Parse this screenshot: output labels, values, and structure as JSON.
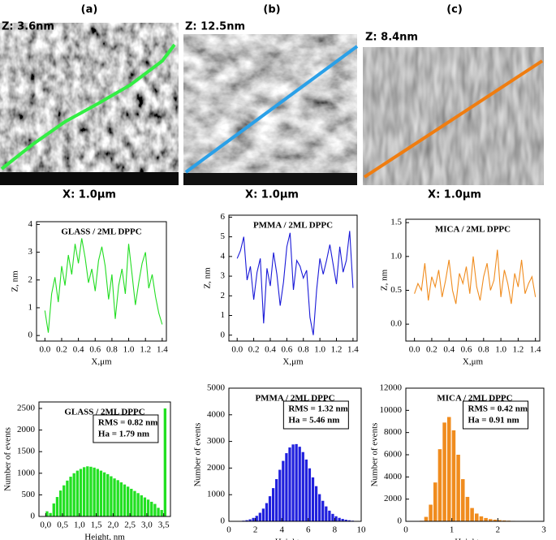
{
  "images": [
    {
      "panel": "(a)",
      "z_label": "Z: 3.6nm",
      "x_label": "X: 1.0μm"
    },
    {
      "panel": "(b)",
      "z_label": "Z: 12.5nm",
      "x_label": "X: 1.0μm"
    },
    {
      "panel": "(c)",
      "z_label": "Z: 8.4nm",
      "x_label": "X: 1.0μm"
    }
  ],
  "chart_data": [
    {
      "type": "line",
      "title": "GLASS / 2ML DPPC",
      "x_label": "X,μm",
      "y_label": "Z, nm",
      "color": "#22dd22",
      "x": [
        0,
        0.04,
        0.08,
        0.12,
        0.16,
        0.2,
        0.24,
        0.28,
        0.32,
        0.36,
        0.4,
        0.44,
        0.48,
        0.52,
        0.56,
        0.6,
        0.64,
        0.68,
        0.72,
        0.76,
        0.8,
        0.84,
        0.88,
        0.92,
        0.96,
        1.0,
        1.04,
        1.08,
        1.12,
        1.16,
        1.2,
        1.24,
        1.28,
        1.32,
        1.36,
        1.4
      ],
      "values": [
        0.9,
        0.1,
        1.5,
        2.1,
        1.2,
        2.5,
        1.8,
        2.9,
        2.2,
        3.3,
        2.6,
        3.5,
        2.8,
        1.9,
        2.4,
        1.6,
        2.7,
        3.2,
        2.5,
        1.3,
        2.2,
        0.6,
        1.8,
        2.4,
        1.5,
        3.3,
        2.2,
        1.1,
        1.9,
        2.6,
        3.0,
        1.7,
        2.2,
        1.4,
        0.8,
        0.4
      ],
      "xlim": [
        -0.1,
        1.45
      ],
      "xticks": [
        {
          "value": 0,
          "label": "0.0"
        },
        {
          "value": 0.2,
          "label": "0.2"
        },
        {
          "value": 0.4,
          "label": "0.4"
        },
        {
          "value": 0.6,
          "label": "0.6"
        },
        {
          "value": 0.8,
          "label": "0.8"
        },
        {
          "value": 1,
          "label": "1.0"
        },
        {
          "value": 1.2,
          "label": "1.2"
        },
        {
          "value": 1.4,
          "label": "1.4"
        }
      ],
      "ylim": [
        -0.2,
        4.1
      ],
      "yticks": [
        0,
        1,
        2,
        3,
        4
      ]
    },
    {
      "type": "line",
      "title": "PMMA / 2ML DPPC",
      "x_label": "X,μm",
      "y_label": "Z, nm",
      "color": "#1a1ad8",
      "x": [
        0,
        0.04,
        0.08,
        0.12,
        0.16,
        0.2,
        0.24,
        0.28,
        0.32,
        0.36,
        0.4,
        0.44,
        0.48,
        0.52,
        0.56,
        0.6,
        0.64,
        0.68,
        0.72,
        0.76,
        0.8,
        0.84,
        0.88,
        0.92,
        0.96,
        1.0,
        1.04,
        1.08,
        1.12,
        1.16,
        1.2,
        1.24,
        1.28,
        1.32,
        1.36,
        1.4
      ],
      "values": [
        3.9,
        4.3,
        5.0,
        2.8,
        3.5,
        1.8,
        3.2,
        3.9,
        0.6,
        3.4,
        2.5,
        4.2,
        3.1,
        1.5,
        2.7,
        4.5,
        5.2,
        2.3,
        3.8,
        3.5,
        2.9,
        3.3,
        0.9,
        0,
        2.3,
        3.9,
        3.1,
        3.8,
        4.6,
        3.6,
        2.6,
        4.5,
        3.2,
        3.8,
        5.3,
        2.4
      ],
      "xlim": [
        -0.1,
        1.45
      ],
      "xticks": [
        {
          "value": 0,
          "label": "0.0"
        },
        {
          "value": 0.2,
          "label": "0.2"
        },
        {
          "value": 0.4,
          "label": "0.4"
        },
        {
          "value": 0.6,
          "label": "0.6"
        },
        {
          "value": 0.8,
          "label": "0.8"
        },
        {
          "value": 1,
          "label": "1.0"
        },
        {
          "value": 1.2,
          "label": "1.2"
        },
        {
          "value": 1.4,
          "label": "1.4"
        }
      ],
      "ylim": [
        -0.3,
        6.1
      ],
      "yticks": [
        0,
        1,
        2,
        3,
        4,
        5,
        6
      ]
    },
    {
      "type": "line",
      "title": "MICA / 2ML DPPC",
      "x_label": "X,μm",
      "y_label": "Z, nm",
      "color": "#f08c1e",
      "x": [
        0,
        0.04,
        0.08,
        0.12,
        0.16,
        0.2,
        0.24,
        0.28,
        0.32,
        0.36,
        0.4,
        0.44,
        0.48,
        0.52,
        0.56,
        0.6,
        0.64,
        0.68,
        0.72,
        0.76,
        0.8,
        0.84,
        0.88,
        0.92,
        0.96,
        1.0,
        1.04,
        1.08,
        1.12,
        1.16,
        1.2,
        1.24,
        1.28,
        1.32,
        1.36,
        1.4
      ],
      "values": [
        0.45,
        0.6,
        0.5,
        0.9,
        0.35,
        0.7,
        0.55,
        0.8,
        0.4,
        0.65,
        0.95,
        0.5,
        0.3,
        0.75,
        0.6,
        0.85,
        0.45,
        1.0,
        0.55,
        0.35,
        0.7,
        0.9,
        0.5,
        0.65,
        1.1,
        0.4,
        0.8,
        0.6,
        0.3,
        0.75,
        0.55,
        0.95,
        0.45,
        0.6,
        0.7,
        0.4
      ],
      "xlim": [
        -0.1,
        1.45
      ],
      "xticks": [
        {
          "value": 0,
          "label": "0.0"
        },
        {
          "value": 0.2,
          "label": "0.2"
        },
        {
          "value": 0.4,
          "label": "0.4"
        },
        {
          "value": 0.6,
          "label": "0.6"
        },
        {
          "value": 0.8,
          "label": "0.8"
        },
        {
          "value": 1,
          "label": "1.0"
        },
        {
          "value": 1.2,
          "label": "1.2"
        },
        {
          "value": 1.4,
          "label": "1.4"
        }
      ],
      "ylim": [
        -0.25,
        1.55
      ],
      "yticks": [
        {
          "value": 0,
          "label": "0.0"
        },
        {
          "value": 0.5,
          "label": "0.5"
        },
        {
          "value": 1,
          "label": "1.0"
        },
        {
          "value": 1.5,
          "label": "1.5"
        }
      ]
    },
    {
      "type": "histogram",
      "title": "GLASS / 2ML DPPC",
      "x_label": "Height, nm",
      "y_label": "Number of events",
      "color": "#22e022",
      "annotations": [
        "RMS = 0.82 nm",
        "Ha = 1.79 nm"
      ],
      "bins": [
        0,
        0.1,
        0.2,
        0.3,
        0.4,
        0.5,
        0.6,
        0.7,
        0.8,
        0.9,
        1.0,
        1.1,
        1.2,
        1.3,
        1.4,
        1.5,
        1.6,
        1.7,
        1.8,
        1.9,
        2.0,
        2.1,
        2.2,
        2.3,
        2.4,
        2.5,
        2.6,
        2.7,
        2.8,
        2.9,
        3.0,
        3.1,
        3.2,
        3.3,
        3.4,
        3.5,
        3.6
      ],
      "counts": [
        120,
        80,
        300,
        450,
        600,
        720,
        830,
        920,
        1000,
        1060,
        1100,
        1140,
        1160,
        1150,
        1130,
        1100,
        1060,
        1020,
        980,
        930,
        880,
        840,
        790,
        740,
        690,
        640,
        590,
        540,
        490,
        440,
        390,
        340,
        290,
        200,
        150,
        2500
      ],
      "xlim": [
        -0.2,
        3.7
      ],
      "xticks": [
        {
          "value": 0,
          "label": "0,0"
        },
        {
          "value": 0.5,
          "label": "0,5"
        },
        {
          "value": 1,
          "label": "1,0"
        },
        {
          "value": 1.5,
          "label": "1,5"
        },
        {
          "value": 2,
          "label": "2,0"
        },
        {
          "value": 2.5,
          "label": "2,5"
        },
        {
          "value": 3,
          "label": "3,0"
        },
        {
          "value": 3.5,
          "label": "3,5"
        }
      ],
      "ylim": [
        0,
        2650
      ],
      "yticks": [
        0,
        500,
        1000,
        1500,
        2000,
        2500
      ]
    },
    {
      "type": "histogram",
      "title": "PMMA / 2ML DPPC",
      "x_label": "Height, nm",
      "y_label": "Number of events",
      "color": "#2020dd",
      "annotations": [
        "RMS = 1.32 nm",
        "Ha = 5.46 nm"
      ],
      "bins": [
        0,
        0.25,
        0.5,
        0.75,
        1,
        1.25,
        1.5,
        1.75,
        2,
        2.25,
        2.5,
        2.75,
        3,
        3.25,
        3.5,
        3.75,
        4,
        4.25,
        4.5,
        4.75,
        5,
        5.25,
        5.5,
        5.75,
        6,
        6.25,
        6.5,
        6.75,
        7,
        7.25,
        7.5,
        7.75,
        8,
        8.25,
        8.5,
        8.75,
        9,
        9.25,
        9.5,
        9.75,
        10
      ],
      "counts": [
        0,
        2,
        5,
        10,
        24,
        43,
        75,
        128,
        206,
        320,
        477,
        684,
        942,
        1246,
        1584,
        1935,
        2270,
        2559,
        2773,
        2886,
        2900,
        2800,
        2600,
        2320,
        1990,
        1650,
        1320,
        1020,
        770,
        560,
        400,
        280,
        190,
        130,
        90,
        60,
        40,
        25,
        15,
        8
      ],
      "xlim": [
        0,
        10
      ],
      "xticks": [
        0,
        2,
        4,
        6,
        8,
        10
      ],
      "ylim": [
        0,
        5000
      ],
      "yticks": [
        0,
        1000,
        2000,
        3000,
        4000,
        5000
      ]
    },
    {
      "type": "histogram",
      "title": "MICA / 2ML DPPC",
      "x_label": "Height, nm",
      "y_label": "Number of events",
      "color": "#f08c1e",
      "annotations": [
        "RMS = 0.42 nm",
        "Ha = 0.91 nm"
      ],
      "bins": [
        0,
        0.1,
        0.2,
        0.3,
        0.4,
        0.5,
        0.6,
        0.7,
        0.8,
        0.9,
        1.0,
        1.1,
        1.2,
        1.3,
        1.4,
        1.5,
        1.6,
        1.7,
        1.8,
        1.9,
        2.0,
        2.1,
        2.2,
        2.3,
        2.4,
        2.5,
        2.6,
        2.7,
        2.8,
        2.9,
        3.0
      ],
      "counts": [
        0,
        0,
        0,
        50,
        400,
        1500,
        3500,
        6500,
        8900,
        9400,
        8200,
        6000,
        3800,
        2200,
        1200,
        700,
        450,
        300,
        200,
        150,
        110,
        80,
        60,
        40,
        30,
        20,
        15,
        10,
        5,
        0
      ],
      "xlim": [
        0,
        3
      ],
      "xticks": [
        0,
        1,
        2,
        3
      ],
      "ylim": [
        0,
        12000
      ],
      "yticks": [
        0,
        2000,
        4000,
        6000,
        8000,
        10000,
        12000
      ]
    }
  ]
}
